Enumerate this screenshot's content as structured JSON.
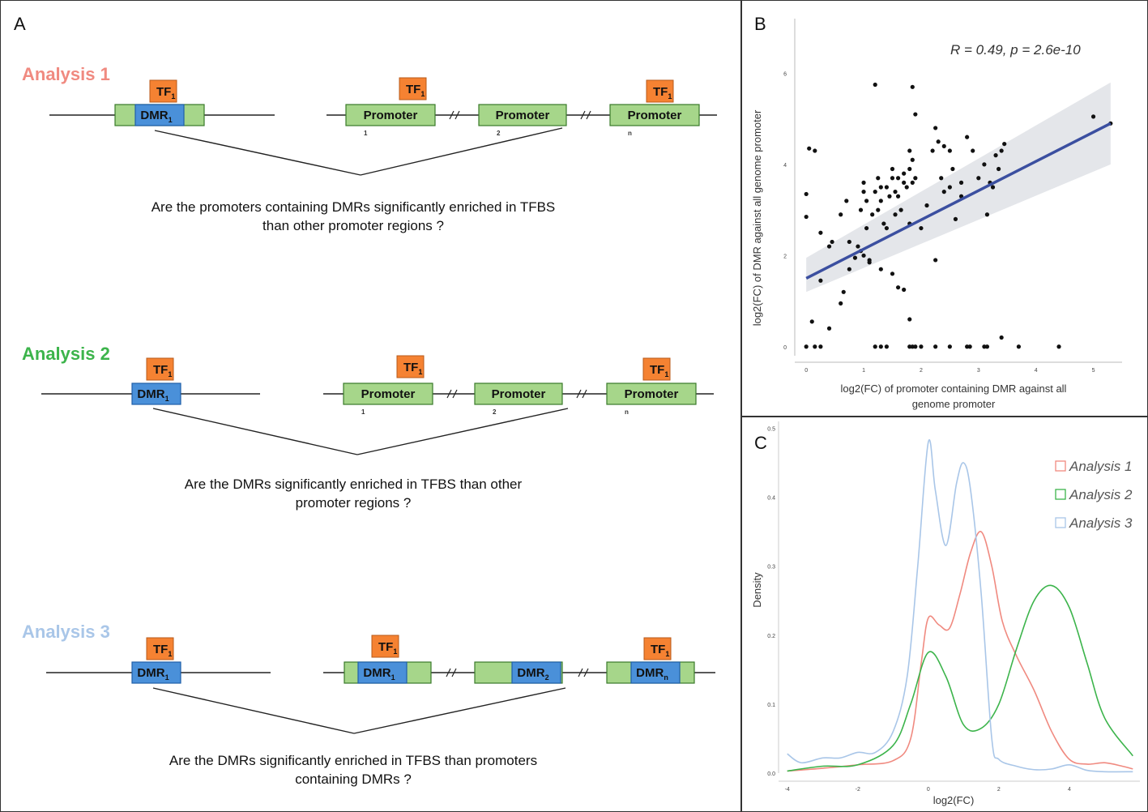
{
  "panelA": {
    "label": "A",
    "tf_label": "TF",
    "tf_sub": "1",
    "dmr_label": "DMR",
    "promoter_label": "Promoter",
    "idx1": "1",
    "idx2": "2",
    "idxn": "n",
    "sub_1": "1",
    "sub_2": "2",
    "sub_n": "n",
    "analyses": [
      {
        "title": "Analysis 1",
        "color": "#f08a80",
        "caption_line1": "Are the promoters containing DMRs significantly enriched in TFBS",
        "caption_line2": "than other promoter regions ?"
      },
      {
        "title": "Analysis 2",
        "color": "#3cb44b",
        "caption_line1": "Are the DMRs significantly enriched in TFBS than other",
        "caption_line2": "promoter regions ?"
      },
      {
        "title": "Analysis 3",
        "color": "#a9c6e8",
        "caption_line1": "Are the DMRs significantly enriched in TFBS than promoters",
        "caption_line2": "containing DMRs ?"
      }
    ],
    "colors": {
      "tf": "#f58232",
      "promoter": "#a6d68a",
      "dmr": "#4a90d9",
      "edge_green": "#3a7a2a",
      "edge_blue": "#1f5fa8"
    }
  },
  "panelB": {
    "label": "B",
    "annotation": "R = 0.49, p = 2.6e-10",
    "xlabel_line1": "log2(FC) of promoter containing DMR against all",
    "xlabel_line2": "genome promoter",
    "ylabel": "log2(FC) of DMR against all genome promoter",
    "chart_data": {
      "type": "scatter",
      "xlim": [
        -0.2,
        5.5
      ],
      "ylim": [
        -0.2,
        7.2
      ],
      "xticks": [
        0,
        1,
        2,
        3,
        4,
        5
      ],
      "yticks": [
        0,
        2,
        4,
        6
      ],
      "regression": {
        "x": [
          0,
          5.3
        ],
        "y": [
          1.5,
          4.9
        ],
        "ci_low_start": 1.2,
        "ci_high_start": 1.95,
        "ci_low_end": 4.0,
        "ci_high_end": 5.8,
        "color": "#3b4fa0"
      },
      "points": [
        [
          0,
          0
        ],
        [
          0.15,
          0
        ],
        [
          0.25,
          0
        ],
        [
          0,
          3.35
        ],
        [
          0,
          2.85
        ],
        [
          0.05,
          4.35
        ],
        [
          0.15,
          4.3
        ],
        [
          0.1,
          0.55
        ],
        [
          0.25,
          1.45
        ],
        [
          0.25,
          2.5
        ],
        [
          0.4,
          2.2
        ],
        [
          0.45,
          2.3
        ],
        [
          0.4,
          0.4
        ],
        [
          0.6,
          0.95
        ],
        [
          0.65,
          1.2
        ],
        [
          0.6,
          2.9
        ],
        [
          0.7,
          3.2
        ],
        [
          0.75,
          2.3
        ],
        [
          0.75,
          1.7
        ],
        [
          0.85,
          1.95
        ],
        [
          0.9,
          2.2
        ],
        [
          0.95,
          3.0
        ],
        [
          1.0,
          3.4
        ],
        [
          1.0,
          3.6
        ],
        [
          1.05,
          3.2
        ],
        [
          1.05,
          2.6
        ],
        [
          1.0,
          2.0
        ],
        [
          1.1,
          1.85
        ],
        [
          1.15,
          2.9
        ],
        [
          1.2,
          3.4
        ],
        [
          1.25,
          3.0
        ],
        [
          1.2,
          5.75
        ],
        [
          1.25,
          3.7
        ],
        [
          1.3,
          3.5
        ],
        [
          1.35,
          2.7
        ],
        [
          1.3,
          3.2
        ],
        [
          1.4,
          3.5
        ],
        [
          1.4,
          2.6
        ],
        [
          1.45,
          3.3
        ],
        [
          1.5,
          3.9
        ],
        [
          1.5,
          3.7
        ],
        [
          1.55,
          3.4
        ],
        [
          1.55,
          2.9
        ],
        [
          1.6,
          3.7
        ],
        [
          1.6,
          3.3
        ],
        [
          1.65,
          3.0
        ],
        [
          1.7,
          3.8
        ],
        [
          1.7,
          3.6
        ],
        [
          1.75,
          3.5
        ],
        [
          1.8,
          3.9
        ],
        [
          1.8,
          4.3
        ],
        [
          1.85,
          3.6
        ],
        [
          1.85,
          4.1
        ],
        [
          1.9,
          3.7
        ],
        [
          1.9,
          5.1
        ],
        [
          1.8,
          2.7
        ],
        [
          1.85,
          5.7
        ],
        [
          2.0,
          2.6
        ],
        [
          2.1,
          3.1
        ],
        [
          2.2,
          4.3
        ],
        [
          2.25,
          4.8
        ],
        [
          2.3,
          4.5
        ],
        [
          2.35,
          3.7
        ],
        [
          2.4,
          4.4
        ],
        [
          2.4,
          3.4
        ],
        [
          2.5,
          4.3
        ],
        [
          2.5,
          3.5
        ],
        [
          2.55,
          3.9
        ],
        [
          2.6,
          2.8
        ],
        [
          2.7,
          3.6
        ],
        [
          2.8,
          4.6
        ],
        [
          2.9,
          4.3
        ],
        [
          3.0,
          3.7
        ],
        [
          3.1,
          4.0
        ],
        [
          3.15,
          2.9
        ],
        [
          3.2,
          3.6
        ],
        [
          3.25,
          3.5
        ],
        [
          3.3,
          4.2
        ],
        [
          3.35,
          3.9
        ],
        [
          3.4,
          4.3
        ],
        [
          3.45,
          4.45
        ],
        [
          1.2,
          0
        ],
        [
          1.3,
          0
        ],
        [
          1.4,
          0
        ],
        [
          1.6,
          1.3
        ],
        [
          1.7,
          1.25
        ],
        [
          1.5,
          1.6
        ],
        [
          1.3,
          1.7
        ],
        [
          1.8,
          0.6
        ],
        [
          1.85,
          0
        ],
        [
          1.9,
          0
        ],
        [
          2.0,
          0
        ],
        [
          2.25,
          0
        ],
        [
          2.5,
          0
        ],
        [
          2.8,
          0
        ],
        [
          2.85,
          0
        ],
        [
          3.1,
          0
        ],
        [
          3.15,
          0
        ],
        [
          3.4,
          0.2
        ],
        [
          3.7,
          0
        ],
        [
          4.4,
          0
        ],
        [
          1.8,
          0
        ],
        [
          2.25,
          1.9
        ],
        [
          5.0,
          5.05
        ],
        [
          5.3,
          4.9
        ],
        [
          1.1,
          1.9
        ],
        [
          0.95,
          2.1
        ],
        [
          2.7,
          3.3
        ]
      ]
    }
  },
  "panelC": {
    "label": "C",
    "xlabel": "log2(FC)",
    "ylabel": "Density",
    "chart_data": {
      "type": "line",
      "xlim": [
        -4.2,
        6.0
      ],
      "ylim": [
        0,
        0.51
      ],
      "xticks": [
        -4,
        -2,
        0,
        2,
        4
      ],
      "xtick_labels": [
        "-4",
        "-2",
        "0",
        "2",
        "4"
      ],
      "yticks": [
        0.0,
        0.1,
        0.2,
        0.3,
        0.4,
        0.5
      ],
      "ytick_labels": [
        "0.0",
        "0.1",
        "0.2",
        "0.3",
        "0.4",
        "0.5"
      ],
      "series": [
        {
          "name": "Analysis 1",
          "color": "#f08a80",
          "x": [
            -4,
            -3,
            -2,
            -1,
            -0.5,
            -0.2,
            0,
            0.3,
            0.6,
            0.9,
            1.2,
            1.5,
            1.8,
            2.1,
            2.5,
            3.0,
            3.5,
            4.0,
            4.5,
            5.0,
            5.5,
            5.8
          ],
          "y": [
            0.003,
            0.007,
            0.012,
            0.018,
            0.05,
            0.16,
            0.225,
            0.215,
            0.21,
            0.26,
            0.32,
            0.35,
            0.3,
            0.22,
            0.17,
            0.12,
            0.06,
            0.02,
            0.013,
            0.015,
            0.01,
            0.006
          ]
        },
        {
          "name": "Analysis 2",
          "color": "#3cb44b",
          "x": [
            -4,
            -3,
            -2,
            -1,
            -0.5,
            0,
            0.5,
            1.0,
            1.5,
            2.0,
            2.5,
            3.0,
            3.5,
            4.0,
            4.5,
            5.0,
            5.8
          ],
          "y": [
            0.003,
            0.01,
            0.012,
            0.04,
            0.1,
            0.175,
            0.14,
            0.07,
            0.065,
            0.1,
            0.18,
            0.25,
            0.272,
            0.24,
            0.16,
            0.08,
            0.025
          ]
        },
        {
          "name": "Analysis 3",
          "color": "#a9c6e8",
          "x": [
            -4,
            -3.6,
            -3,
            -2.5,
            -2,
            -1.5,
            -1,
            -0.6,
            -0.3,
            0,
            0.2,
            0.5,
            0.8,
            1.0,
            1.2,
            1.5,
            1.8,
            2.0,
            2.5,
            3,
            3.5,
            4,
            4.5,
            5,
            5.8
          ],
          "y": [
            0.028,
            0.015,
            0.022,
            0.022,
            0.03,
            0.03,
            0.06,
            0.14,
            0.3,
            0.48,
            0.41,
            0.33,
            0.42,
            0.45,
            0.41,
            0.26,
            0.05,
            0.02,
            0.01,
            0.005,
            0.006,
            0.012,
            0.004,
            0.002,
            0.002
          ]
        }
      ]
    }
  }
}
